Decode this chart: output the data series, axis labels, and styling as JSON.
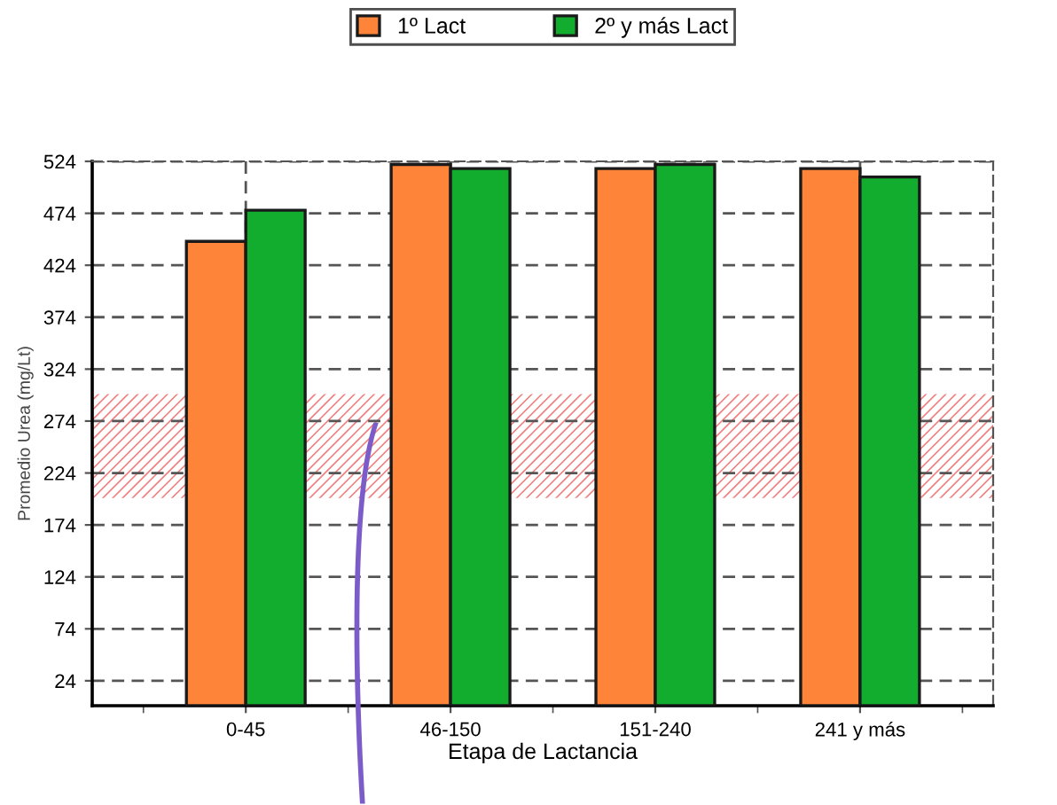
{
  "chart_data": {
    "type": "bar",
    "xlabel": "Etapa de Lactancia",
    "ylabel": "Promedio Urea (mg/Lt)",
    "categories": [
      "0-45",
      "46-150",
      "151-240",
      "241 y más"
    ],
    "series": [
      {
        "name": "1º Lact",
        "color": "#fd8439",
        "values": [
          447,
          521,
          517,
          517
        ]
      },
      {
        "name": "2º y más Lact",
        "color": "#12ac2e",
        "values": [
          477,
          517,
          521,
          509
        ]
      }
    ],
    "ylim": [
      0,
      524
    ],
    "yticks": [
      24,
      74,
      124,
      174,
      224,
      274,
      324,
      374,
      424,
      474,
      524
    ],
    "bands": [
      {
        "axis": "y",
        "from": 200,
        "to": 300,
        "color": "#f08080"
      }
    ],
    "grid": true,
    "legend": "top"
  }
}
